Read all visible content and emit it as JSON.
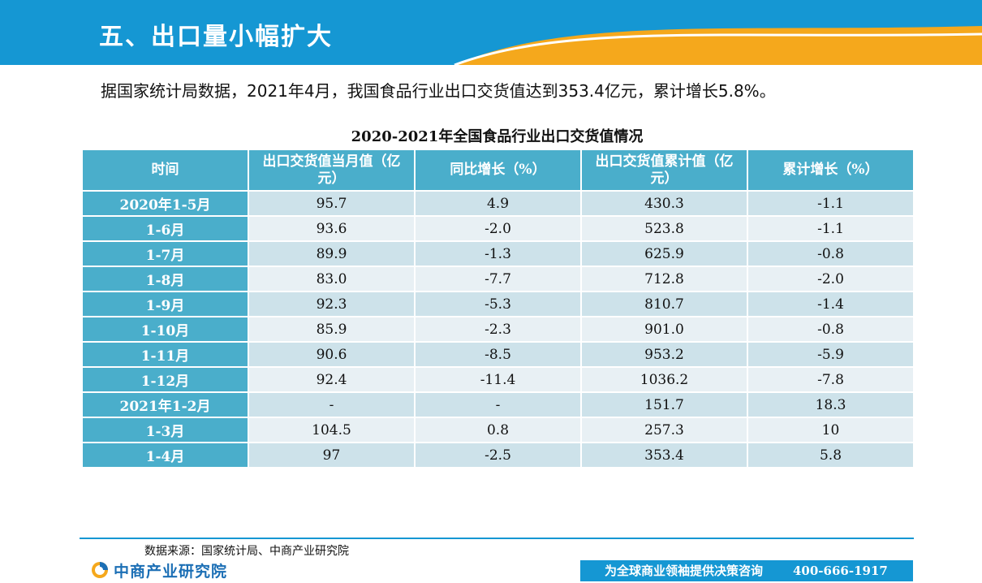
{
  "header": {
    "title": "五、出口量小幅扩大",
    "colors": {
      "band": "#1597d3",
      "accent": "#f5a81c"
    }
  },
  "intro": "据国家统计局数据，2021年4月，我国食品行业出口交货值达到353.4亿元，累计增长5.8%。",
  "table": {
    "title": "2020-2021年全国食品行业出口交货值情况",
    "headers": [
      "时间",
      "出口交货值当月值（亿元）",
      "同比增长（%）",
      "出口交货值累计值（亿元）",
      "累计增长（%）"
    ],
    "rows": [
      [
        "2020年1-5月",
        "95.7",
        "4.9",
        "430.3",
        "-1.1"
      ],
      [
        "1-6月",
        "93.6",
        "-2.0",
        "523.8",
        "-1.1"
      ],
      [
        "1-7月",
        "89.9",
        "-1.3",
        "625.9",
        "-0.8"
      ],
      [
        "1-8月",
        "83.0",
        "-7.7",
        "712.8",
        "-2.0"
      ],
      [
        "1-9月",
        "92.3",
        "-5.3",
        "810.7",
        "-1.4"
      ],
      [
        "1-10月",
        "85.9",
        "-2.3",
        "901.0",
        "-0.8"
      ],
      [
        "1-11月",
        "90.6",
        "-8.5",
        "953.2",
        "-5.9"
      ],
      [
        "1-12月",
        "92.4",
        "-11.4",
        "1036.2",
        "-7.8"
      ],
      [
        "2021年1-2月",
        "-",
        "-",
        "151.7",
        "18.3"
      ],
      [
        "1-3月",
        "104.5",
        "0.8",
        "257.3",
        "10"
      ],
      [
        "1-4月",
        "97",
        "-2.5",
        "353.4",
        "5.8"
      ]
    ],
    "colors": {
      "header": "#4aaecb",
      "row_dark": "#cde2ea",
      "row_light": "#e8f0f4"
    }
  },
  "footer": {
    "source": "数据来源：国家统计局、中商产业研究院",
    "logo_text": "中商产业研究院",
    "logo_icon": "zhongshang-logo-icon",
    "slogan": "为全球商业领袖提供决策咨询",
    "phone": "400-666-1917"
  }
}
